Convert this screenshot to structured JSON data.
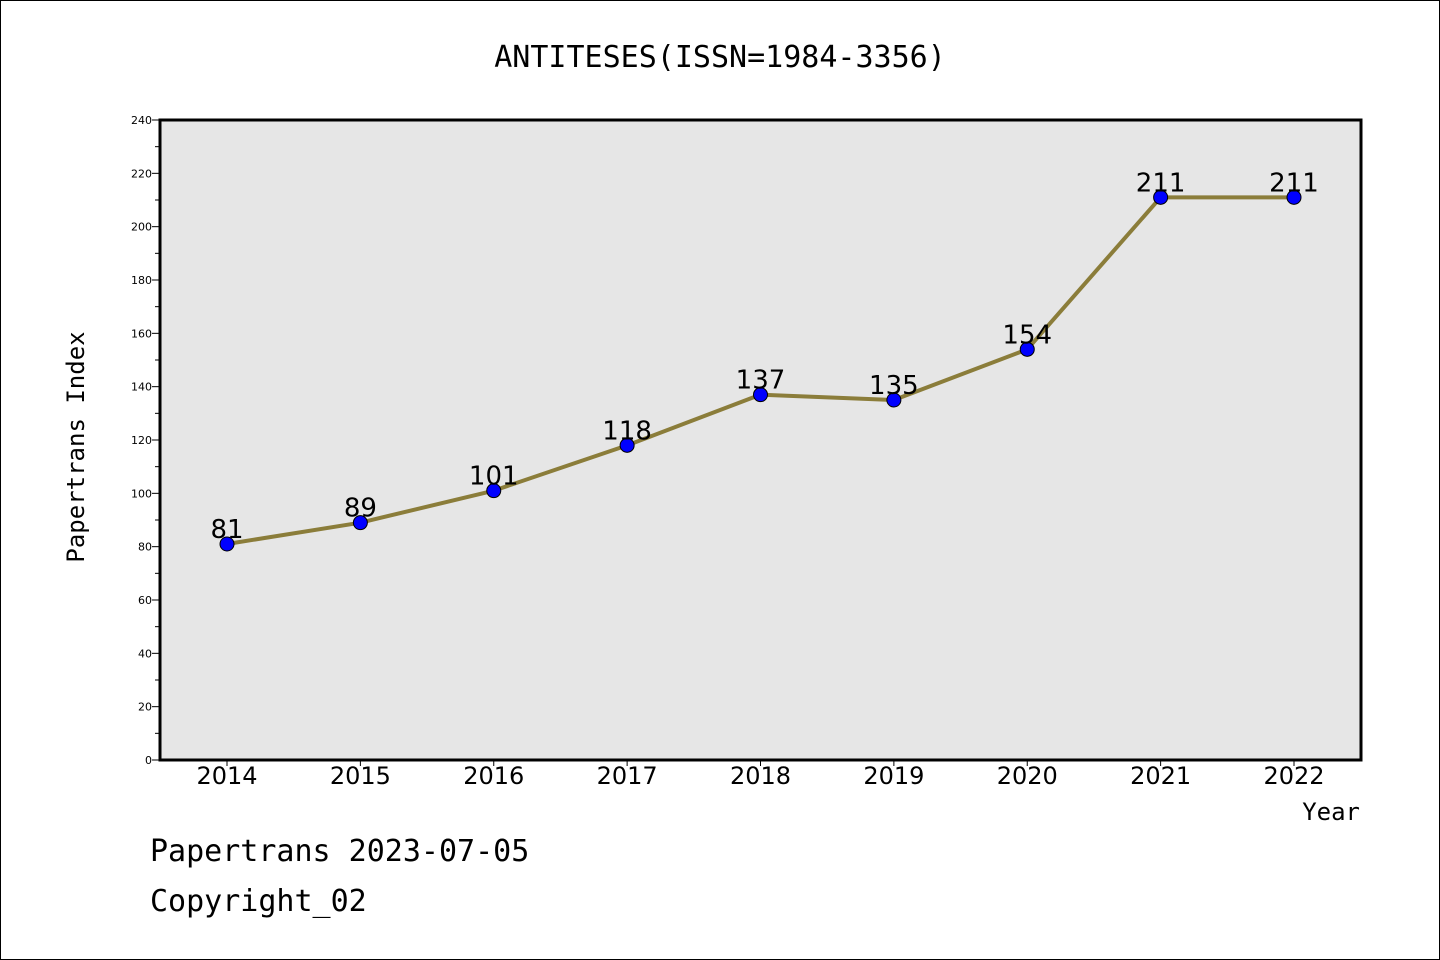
{
  "chart_data": {
    "type": "line",
    "title": "ANTITESES(ISSN=1984-3356)",
    "xlabel": "Year",
    "ylabel": "Papertrans Index",
    "categories": [
      "2014",
      "2015",
      "2016",
      "2017",
      "2018",
      "2019",
      "2020",
      "2021",
      "2022"
    ],
    "series": [
      {
        "values": [
          81,
          89,
          101,
          118,
          137,
          135,
          154,
          211,
          211
        ]
      }
    ],
    "ylim": [
      0,
      240
    ],
    "yticks": [
      0,
      20,
      40,
      60,
      80,
      100,
      120,
      140,
      160,
      180,
      200,
      220,
      240
    ],
    "grid": false,
    "data_labels": true,
    "colors": {
      "line": "#8B7D3A",
      "marker": "#0000FF",
      "plot_background": "#E6E6E6"
    }
  },
  "footer": {
    "line1": "Papertrans 2023-07-05",
    "line2": "Copyright_02"
  }
}
